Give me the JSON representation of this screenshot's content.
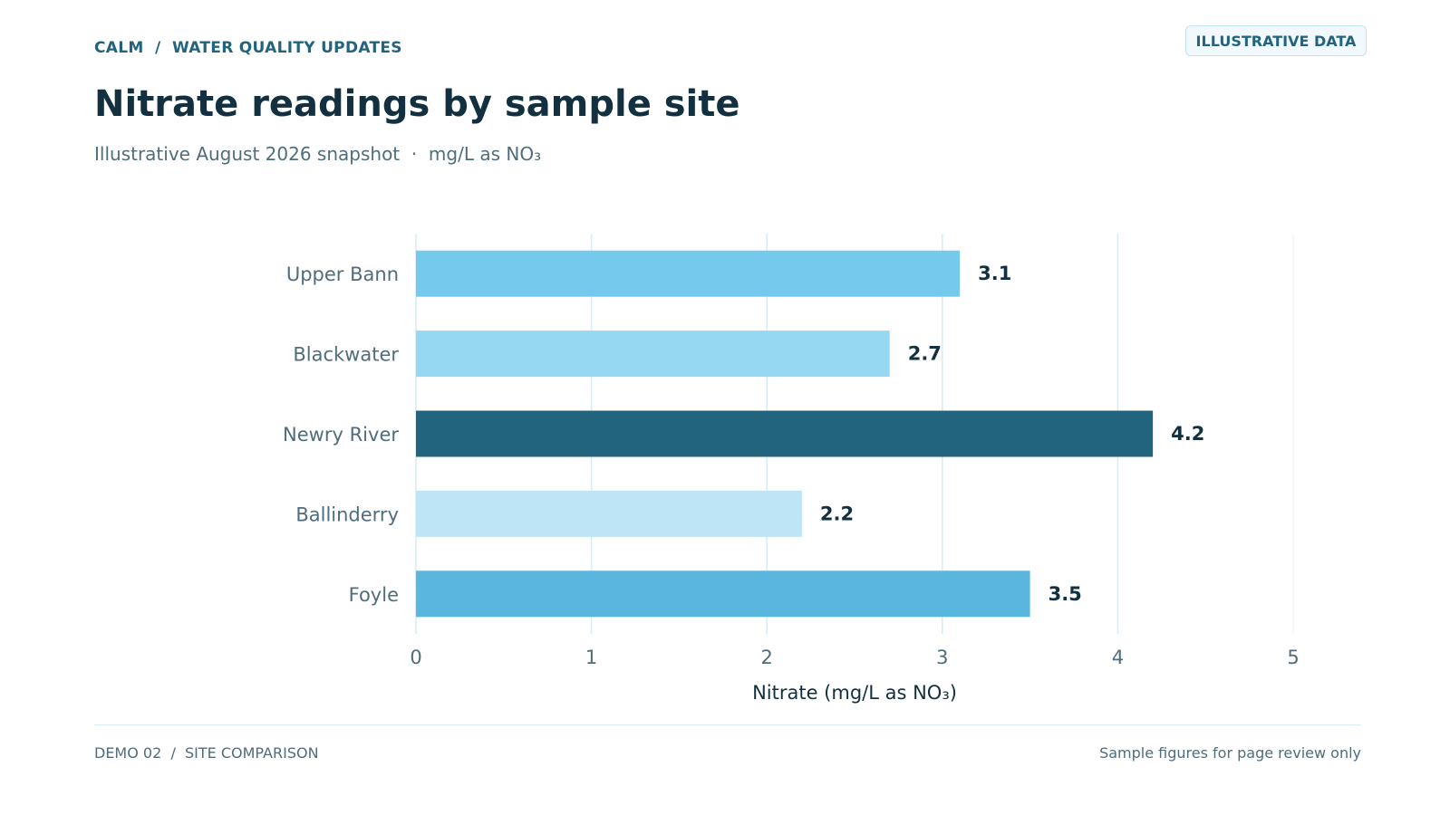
{
  "header": {
    "breadcrumb": "CALM  /  WATER QUALITY UPDATES",
    "badge": "ILLUSTRATIVE DATA",
    "title": "Nitrate readings by sample site",
    "subtitle": "Illustrative August 2026 snapshot  ·  mg/L as NO₃"
  },
  "chart_data": {
    "type": "bar",
    "orientation": "horizontal",
    "categories": [
      "Upper Bann",
      "Blackwater",
      "Newry River",
      "Ballinderry",
      "Foyle"
    ],
    "values": [
      3.1,
      2.7,
      4.2,
      2.2,
      3.5
    ],
    "value_labels": [
      "3.1",
      "2.7",
      "4.2",
      "2.2",
      "3.5"
    ],
    "bar_colors": [
      "#74c9ed",
      "#96d8f1",
      "#22637e",
      "#bde5f5",
      "#59b7df"
    ],
    "xlabel": "Nitrate (mg/L as NO₃)",
    "ylabel": "",
    "xlim": [
      0,
      5
    ],
    "ticks": [
      "0",
      "1",
      "2",
      "3",
      "4",
      "5"
    ],
    "grid": "vertical"
  },
  "footer": {
    "left": "DEMO 02  /  SITE COMPARISON",
    "right": "Sample figures for page review only"
  },
  "colors": {
    "title": "#12303f",
    "accent": "#22637e",
    "muted": "#4f6d7b",
    "grid": "#d6ecf6"
  }
}
